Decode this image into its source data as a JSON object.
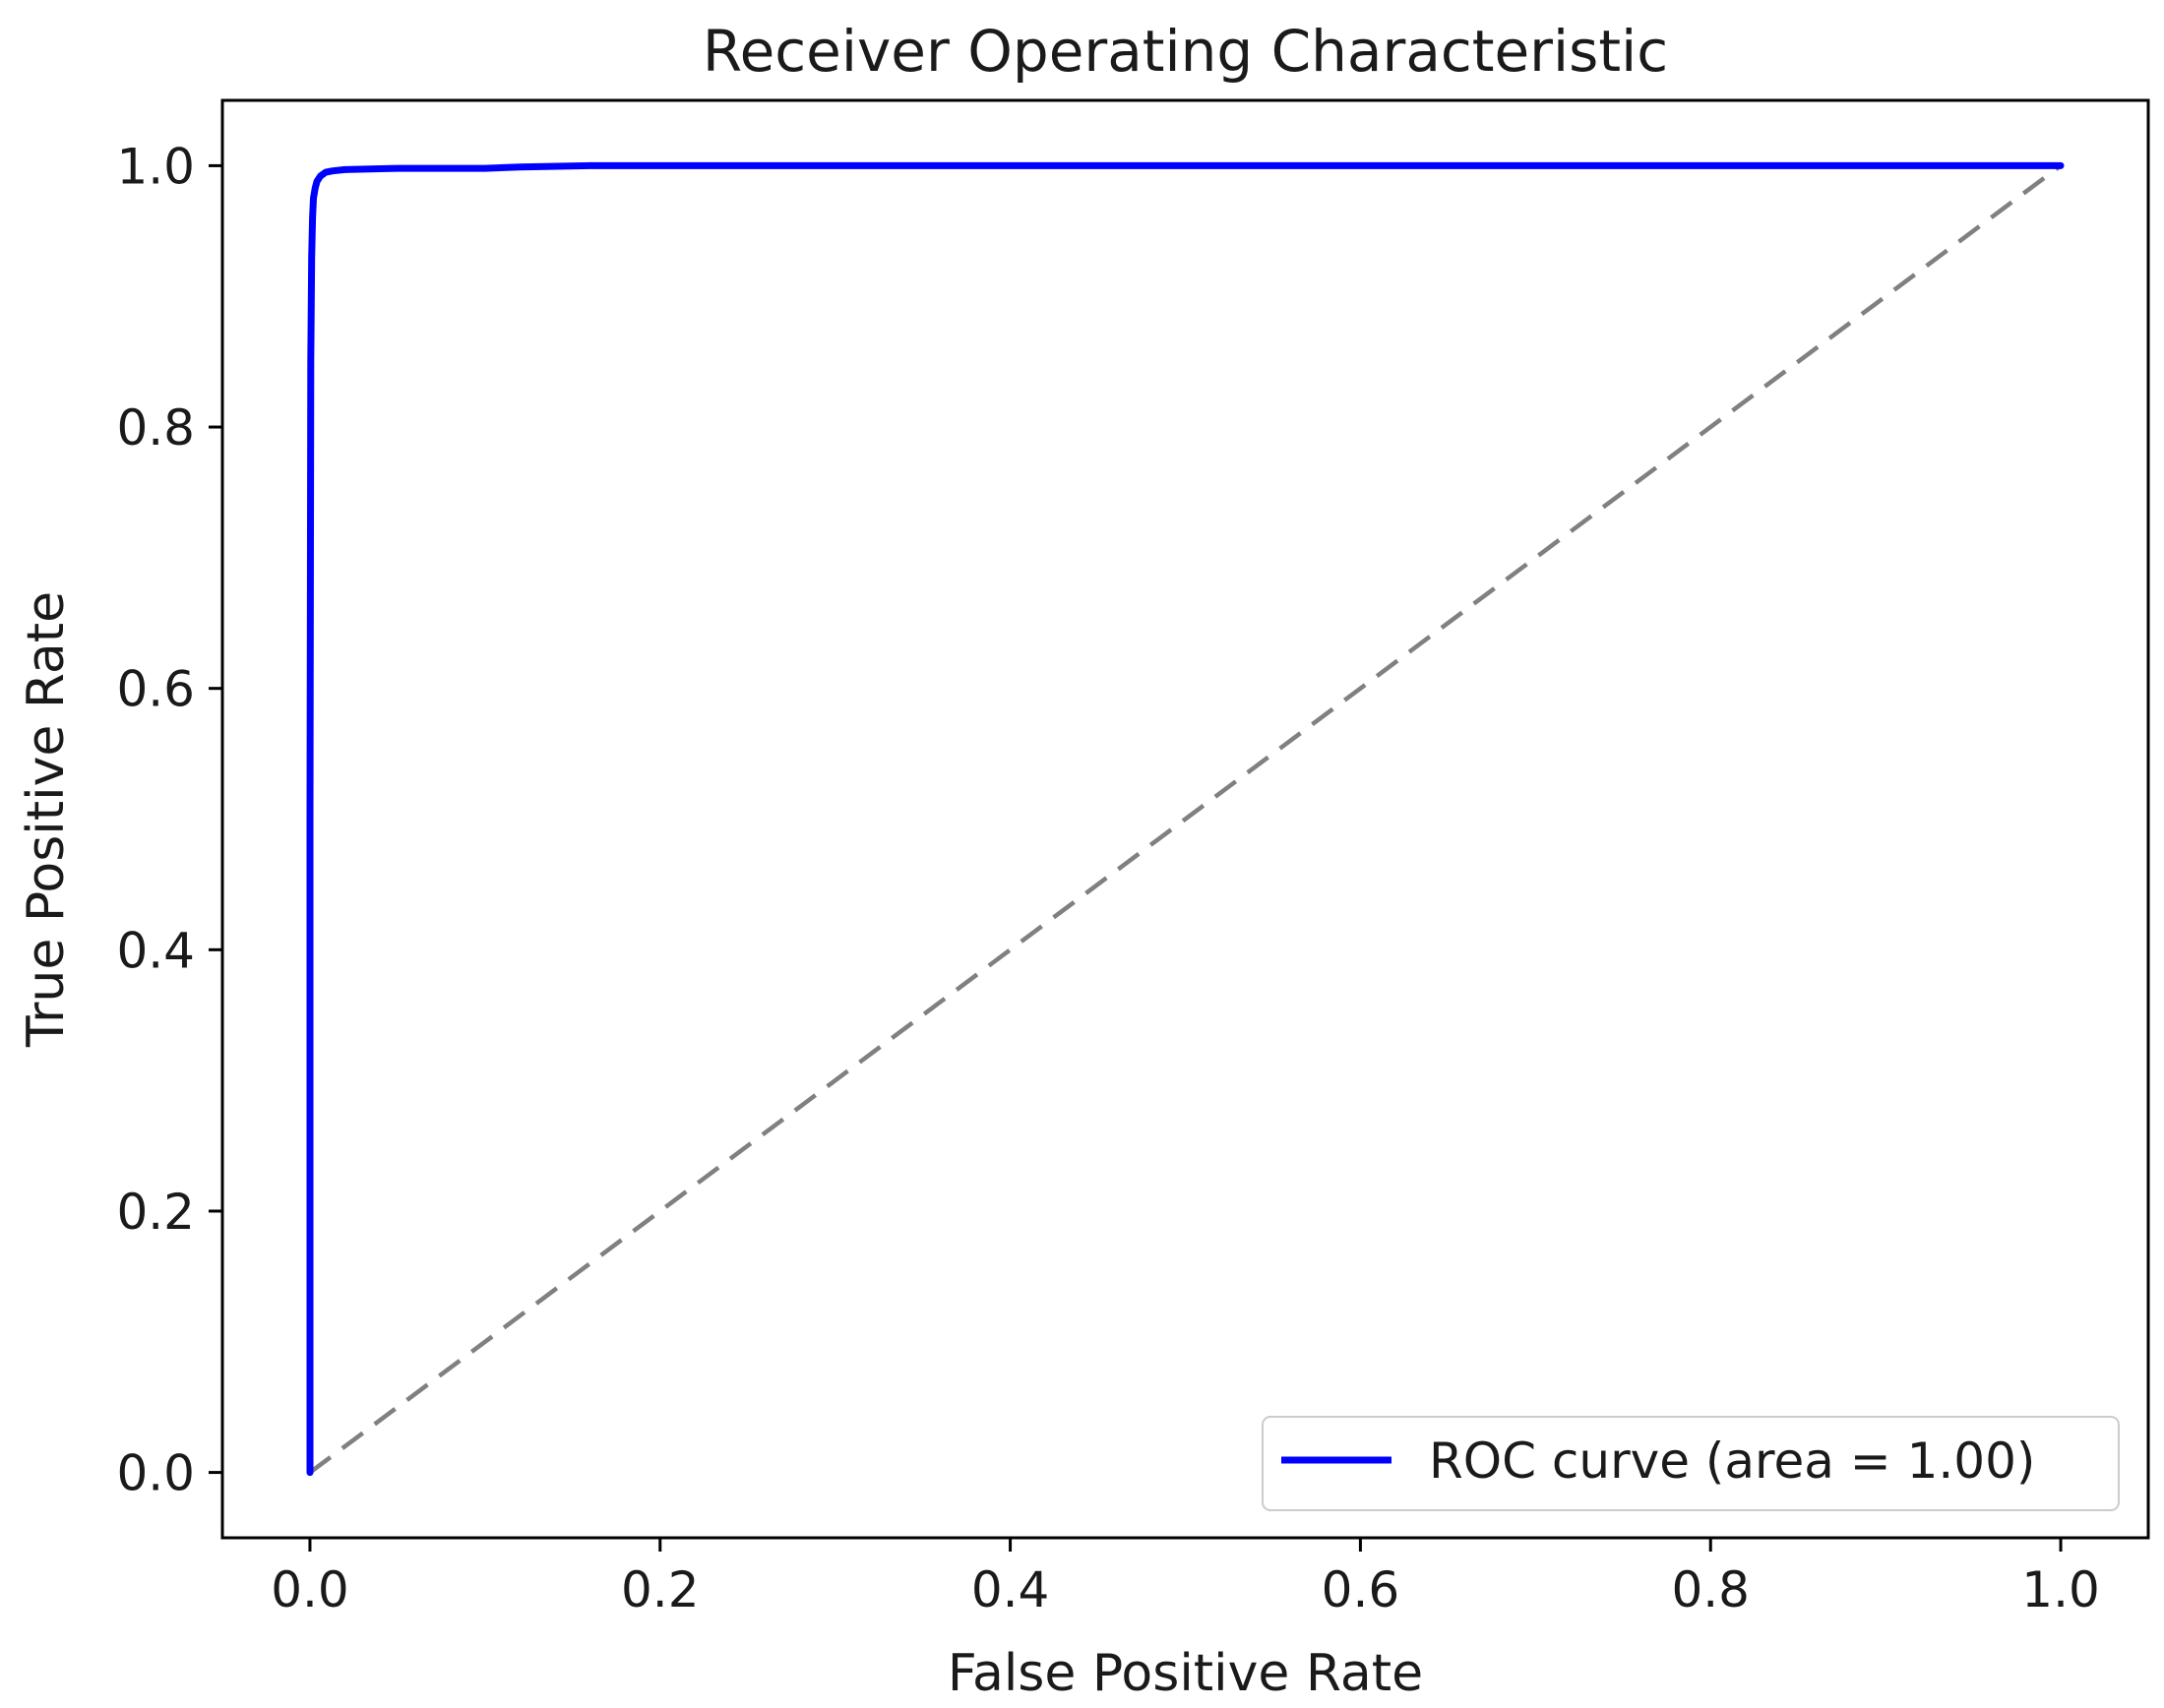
{
  "chart_data": {
    "type": "line",
    "title": "Receiver Operating Characteristic",
    "xlabel": "False Positive Rate",
    "ylabel": "True Positive Rate",
    "xlim": [
      -0.05,
      1.05
    ],
    "ylim": [
      -0.05,
      1.05
    ],
    "xticks": [
      0.0,
      0.2,
      0.4,
      0.6,
      0.8,
      1.0
    ],
    "xtick_labels": [
      "0.0",
      "0.2",
      "0.4",
      "0.6",
      "0.8",
      "1.0"
    ],
    "yticks": [
      0.0,
      0.2,
      0.4,
      0.6,
      0.8,
      1.0
    ],
    "ytick_labels": [
      "0.0",
      "0.2",
      "0.4",
      "0.6",
      "0.8",
      "1.0"
    ],
    "grid": false,
    "legend_position": "lower-right",
    "series": [
      {
        "name": "ROC curve (area = 1.00)",
        "color": "#0000ff",
        "style": "solid",
        "x": [
          0.0,
          0.0,
          0.0005,
          0.001,
          0.0015,
          0.002,
          0.003,
          0.004,
          0.006,
          0.009,
          0.013,
          0.02,
          0.05,
          0.1,
          0.12,
          0.16,
          0.2,
          0.4,
          0.6,
          0.8,
          1.0
        ],
        "y": [
          0.0,
          0.5,
          0.85,
          0.93,
          0.96,
          0.975,
          0.983,
          0.988,
          0.992,
          0.995,
          0.996,
          0.997,
          0.998,
          0.998,
          0.999,
          1.0,
          1.0,
          1.0,
          1.0,
          1.0,
          1.0
        ]
      },
      {
        "color": "#808080",
        "style": "dashed",
        "x": [
          0.0,
          1.0
        ],
        "y": [
          0.0,
          1.0
        ]
      }
    ]
  }
}
